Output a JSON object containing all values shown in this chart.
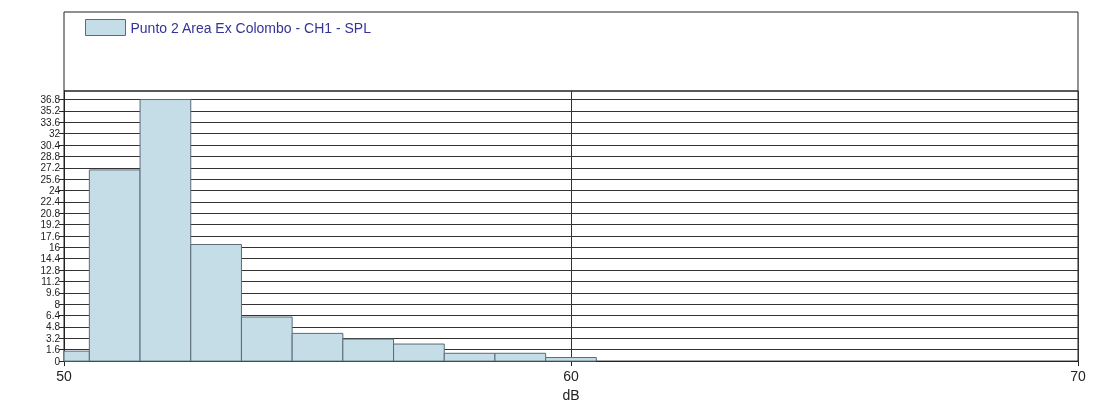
{
  "chart_data": {
    "type": "histogram",
    "xlabel": "dB",
    "bins": [
      50,
      50.5,
      51.5,
      52.5,
      53.5,
      54.5,
      55.5,
      56.5,
      57.5,
      58.5,
      59.5,
      60.5
    ],
    "series": [
      {
        "name": "Punto 2 Area Ex Colombo - CH1 - SPL",
        "color": "#c5dde6",
        "values": [
          1.4,
          26.9,
          36.8,
          16.4,
          6.2,
          3.9,
          3.1,
          2.4,
          1.1,
          1.1,
          0.5
        ]
      }
    ],
    "xlim": [
      50,
      70
    ],
    "xticks": [
      50,
      60,
      70
    ],
    "ylim": [
      0,
      38
    ],
    "yticks": [
      0,
      1.6,
      3.2,
      4.8,
      6.4,
      8,
      9.6,
      11.2,
      12.8,
      14.4,
      16,
      17.6,
      19.2,
      20.8,
      22.4,
      24,
      25.6,
      27.2,
      28.8,
      30.4,
      32,
      33.6,
      35.2,
      36.8
    ],
    "grid": true,
    "legend": "top left"
  }
}
